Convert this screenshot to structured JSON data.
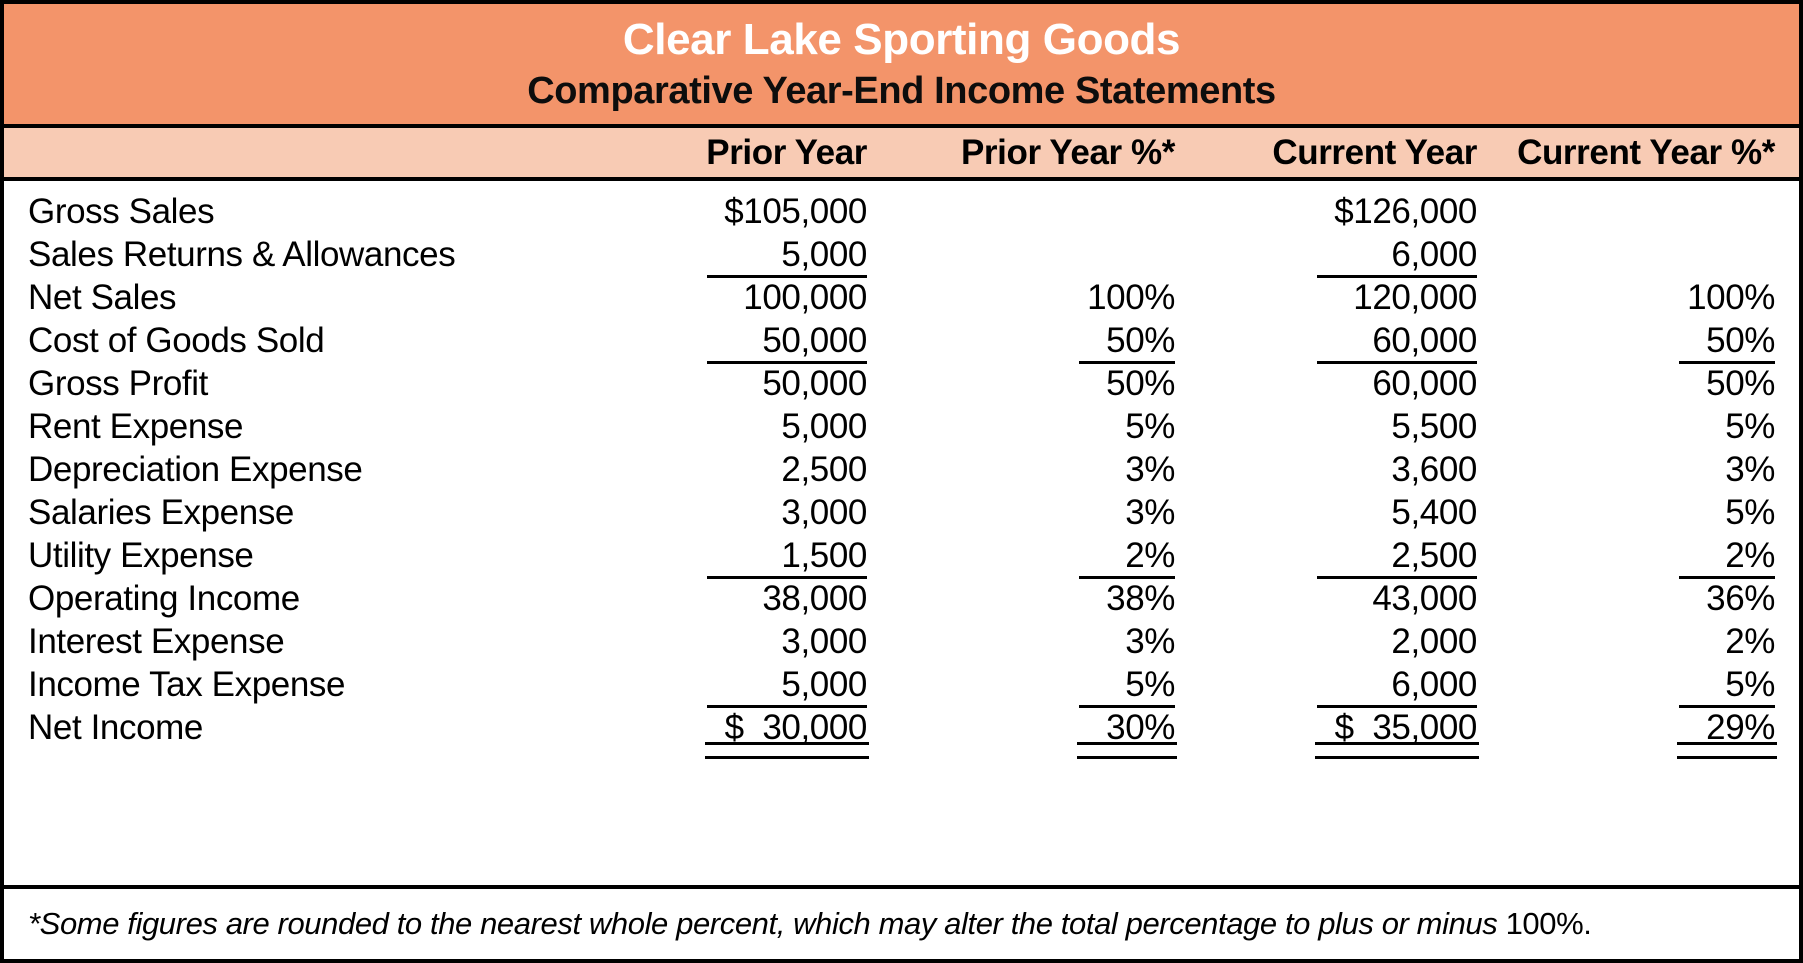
{
  "header": {
    "title": "Clear Lake Sporting Goods",
    "subtitle": "Comparative Year-End Income Statements"
  },
  "columns": {
    "c1": "Prior Year",
    "c2": "Prior Year %*",
    "c3": "Current Year",
    "c4": "Current Year %*"
  },
  "table": {
    "rows": [
      {
        "label": "Gross Sales",
        "cells": [
          "$105,000",
          "",
          "$126,000",
          ""
        ],
        "rules": [
          "none",
          "none",
          "none",
          "none"
        ]
      },
      {
        "label": "Sales Returns & Allowances",
        "cells": [
          "5,000",
          "",
          "6,000",
          ""
        ],
        "rules": [
          "single",
          "none",
          "single",
          "none"
        ]
      },
      {
        "label": "Net Sales",
        "cells": [
          "100,000",
          "100%",
          "120,000",
          "100%"
        ],
        "rules": [
          "none",
          "none",
          "none",
          "none"
        ]
      },
      {
        "label": "Cost of Goods Sold",
        "cells": [
          "50,000",
          "50%",
          "60,000",
          "50%"
        ],
        "rules": [
          "single",
          "single",
          "single",
          "single"
        ]
      },
      {
        "label": "Gross Profit",
        "cells": [
          "50,000",
          "50%",
          "60,000",
          "50%"
        ],
        "rules": [
          "none",
          "none",
          "none",
          "none"
        ]
      },
      {
        "label": "Rent Expense",
        "cells": [
          "5,000",
          "5%",
          "5,500",
          "5%"
        ],
        "rules": [
          "none",
          "none",
          "none",
          "none"
        ]
      },
      {
        "label": "Depreciation Expense",
        "cells": [
          "2,500",
          "3%",
          "3,600",
          "3%"
        ],
        "rules": [
          "none",
          "none",
          "none",
          "none"
        ]
      },
      {
        "label": "Salaries Expense",
        "cells": [
          "3,000",
          "3%",
          "5,400",
          "5%"
        ],
        "rules": [
          "none",
          "none",
          "none",
          "none"
        ]
      },
      {
        "label": "Utility Expense",
        "cells": [
          "1,500",
          "2%",
          "2,500",
          "2%"
        ],
        "rules": [
          "single",
          "single",
          "single",
          "single"
        ]
      },
      {
        "label": "Operating Income",
        "cells": [
          "38,000",
          "38%",
          "43,000",
          "36%"
        ],
        "rules": [
          "none",
          "none",
          "none",
          "none"
        ]
      },
      {
        "label": "Interest Expense",
        "cells": [
          "3,000",
          "3%",
          "2,000",
          "2%"
        ],
        "rules": [
          "none",
          "none",
          "none",
          "none"
        ]
      },
      {
        "label": "Income Tax Expense",
        "cells": [
          "5,000",
          "5%",
          "6,000",
          "5%"
        ],
        "rules": [
          "single",
          "single",
          "single",
          "single"
        ]
      },
      {
        "label": "Net Income",
        "cells": [
          "$  30,000",
          "30%",
          "$  35,000",
          "29%"
        ],
        "rules": [
          "double",
          "double",
          "double",
          "double"
        ]
      }
    ]
  },
  "footnote": {
    "italic": "*Some figures are rounded to the nearest whole percent, which may alter the total percentage to plus or minus ",
    "plain": "100%."
  },
  "colors": {
    "band_orange": "#F3946A",
    "band_peach": "#F8CBB4",
    "rule_black": "#000000",
    "title_text": "#FFFFFF"
  }
}
